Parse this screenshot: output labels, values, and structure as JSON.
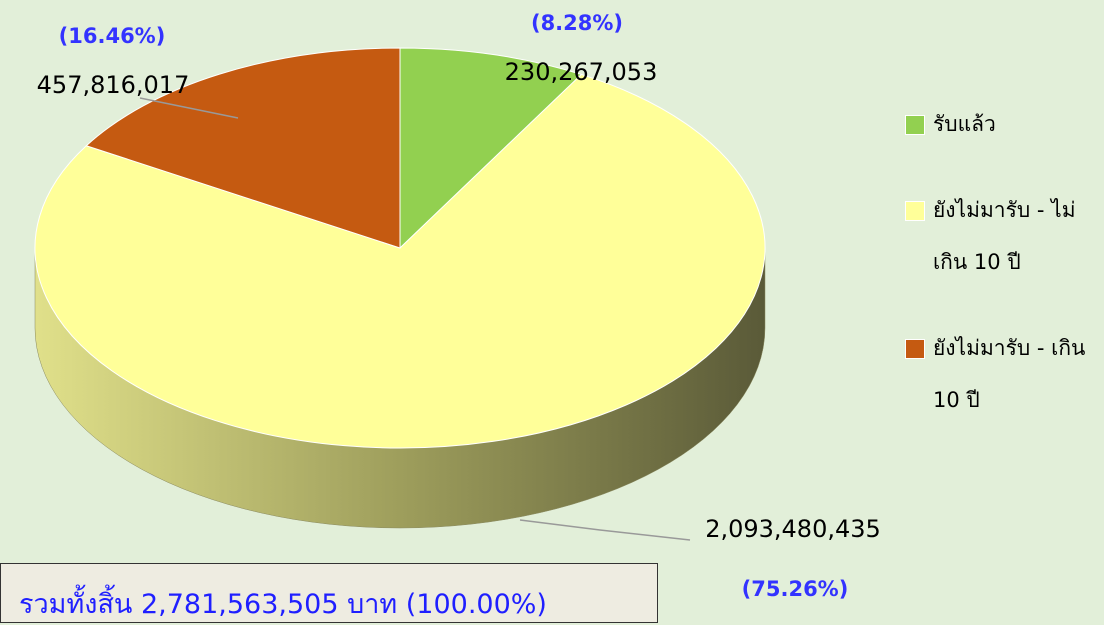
{
  "chart_data": {
    "type": "pie",
    "categories": [
      "รับแล้ว",
      "ยังไม่มารับ - ไม่เกิน 10 ปี",
      "ยังไม่มารับ - เกิน 10 ปี"
    ],
    "values": [
      230267053,
      2093480435,
      457816017
    ],
    "value_labels": [
      "230,267,053",
      "2,093,480,435",
      "457,816,017"
    ],
    "percentages": [
      8.28,
      75.26,
      16.46
    ],
    "percentage_labels": [
      "(8.28%)",
      "(75.26%)",
      "(16.46%)"
    ],
    "colors": [
      "#92d050",
      "#ffff99",
      "#c55a11"
    ],
    "total_label": "รวมทั้งสิ้น 2,781,563,505 บาท (100.00%)",
    "legend": "right"
  }
}
